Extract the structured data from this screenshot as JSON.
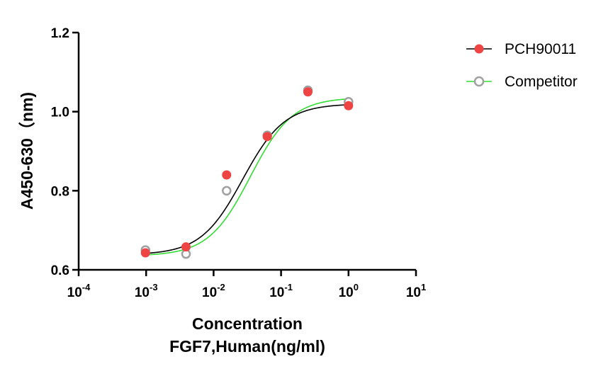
{
  "chart_data": {
    "type": "scatter",
    "xscale": "log",
    "xlim": [
      0.0001,
      10
    ],
    "ylim": [
      0.6,
      1.2
    ],
    "xticks": [
      {
        "base": "10",
        "exp": "-4"
      },
      {
        "base": "10",
        "exp": "-3"
      },
      {
        "base": "10",
        "exp": "-2"
      },
      {
        "base": "10",
        "exp": "-1"
      },
      {
        "base": "10",
        "exp": "0"
      },
      {
        "base": "10",
        "exp": "1"
      }
    ],
    "yticks": [
      "0.6",
      "0.8",
      "1.0",
      "1.2"
    ],
    "xlabel_line1": "Concentration",
    "xlabel_line2": "FGF7,Human(ng/ml)",
    "ylabel": "A450-630（nm)",
    "legend_position": "top-right",
    "series": [
      {
        "name": "PCH90011",
        "marker": "filled-circle",
        "marker_color": "#ee4444",
        "line_color": "#000000",
        "x": [
          0.000977,
          0.0039,
          0.0156,
          0.0625,
          0.25,
          1.0
        ],
        "y": [
          0.643,
          0.658,
          0.84,
          0.937,
          1.05,
          1.015
        ],
        "fit": {
          "bottom": 0.638,
          "top": 1.02,
          "ec50": 0.027,
          "hill": 1.4
        }
      },
      {
        "name": "Competitor",
        "marker": "open-circle",
        "marker_color": "#a0a0a0",
        "line_color": "#33dd33",
        "x": [
          0.000977,
          0.0039,
          0.0156,
          0.0625,
          0.25,
          1.0
        ],
        "y": [
          0.65,
          0.64,
          0.8,
          0.94,
          1.054,
          1.025
        ],
        "fit": {
          "bottom": 0.635,
          "top": 1.036,
          "ec50": 0.035,
          "hill": 1.4
        }
      }
    ]
  }
}
